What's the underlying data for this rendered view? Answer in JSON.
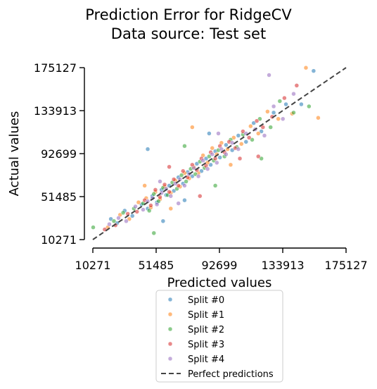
{
  "chart_data": {
    "type": "scatter",
    "title": "Prediction Error for RidgeCV",
    "subtitle": "Data source: Test set",
    "xlabel": "Predicted values",
    "ylabel": "Actual values",
    "xlim": [
      10271,
      175127
    ],
    "ylim": [
      10271,
      175127
    ],
    "xticks": [
      "10271",
      "51485",
      "92699",
      "133913",
      "175127"
    ],
    "yticks": [
      "10271",
      "51485",
      "92699",
      "133913",
      "175127"
    ],
    "grid": false,
    "legend_position": "below",
    "series": [
      {
        "name": "Split #0",
        "color": "#1f77b4",
        "points": [
          [
            22000,
            30000
          ],
          [
            26000,
            26000
          ],
          [
            31000,
            38000
          ],
          [
            36000,
            33000
          ],
          [
            42000,
            44000
          ],
          [
            46000,
            40000
          ],
          [
            49000,
            52000
          ],
          [
            52000,
            46000
          ],
          [
            55000,
            58000
          ],
          [
            58000,
            53000
          ],
          [
            60000,
            62000
          ],
          [
            63000,
            57000
          ],
          [
            66000,
            70000
          ],
          [
            69000,
            64000
          ],
          [
            72000,
            75000
          ],
          [
            75000,
            71000
          ],
          [
            78000,
            83000
          ],
          [
            81000,
            76000
          ],
          [
            84000,
            88000
          ],
          [
            87000,
            82000
          ],
          [
            90000,
            95000
          ],
          [
            93000,
            89000
          ],
          [
            97000,
            101000
          ],
          [
            101000,
            96000
          ],
          [
            105000,
            110000
          ],
          [
            110000,
            104000
          ],
          [
            115000,
            122000
          ],
          [
            120000,
            114000
          ],
          [
            128000,
            132000
          ],
          [
            136000,
            140000
          ],
          [
            146000,
            140000
          ],
          [
            154000,
            172000
          ],
          [
            46000,
            97000
          ],
          [
            56000,
            28000
          ],
          [
            70000,
            48000
          ],
          [
            86000,
            112000
          ]
        ]
      },
      {
        "name": "Split #1",
        "color": "#ff7f0e",
        "points": [
          [
            20000,
            22000
          ],
          [
            28000,
            34000
          ],
          [
            34000,
            30000
          ],
          [
            40000,
            46000
          ],
          [
            45000,
            50000
          ],
          [
            48000,
            41000
          ],
          [
            51000,
            56000
          ],
          [
            54000,
            49000
          ],
          [
            57000,
            61000
          ],
          [
            61000,
            55000
          ],
          [
            64000,
            67000
          ],
          [
            67000,
            61000
          ],
          [
            70000,
            74000
          ],
          [
            73000,
            69000
          ],
          [
            76000,
            80000
          ],
          [
            79000,
            74000
          ],
          [
            82000,
            91000
          ],
          [
            85000,
            84000
          ],
          [
            88000,
            98000
          ],
          [
            91000,
            92000
          ],
          [
            94000,
            103000
          ],
          [
            98000,
            97000
          ],
          [
            102000,
            108000
          ],
          [
            107000,
            102000
          ],
          [
            113000,
            119000
          ],
          [
            118000,
            112000
          ],
          [
            124000,
            133000
          ],
          [
            131000,
            126000
          ],
          [
            140000,
            131000
          ],
          [
            149000,
            175000
          ],
          [
            157000,
            127000
          ],
          [
            75000,
            118000
          ],
          [
            61000,
            40000
          ],
          [
            100000,
            82000
          ],
          [
            44000,
            62000
          ]
        ]
      },
      {
        "name": "Split #2",
        "color": "#2ca02c",
        "points": [
          [
            10500,
            22000
          ],
          [
            24000,
            28000
          ],
          [
            30000,
            36000
          ],
          [
            37000,
            40000
          ],
          [
            43000,
            45000
          ],
          [
            47000,
            38000
          ],
          [
            50000,
            54000
          ],
          [
            53000,
            47000
          ],
          [
            56000,
            60000
          ],
          [
            59000,
            53000
          ],
          [
            62000,
            65000
          ],
          [
            65000,
            59000
          ],
          [
            68000,
            72000
          ],
          [
            71000,
            66000
          ],
          [
            74000,
            78000
          ],
          [
            77000,
            73000
          ],
          [
            80000,
            85000
          ],
          [
            83000,
            79000
          ],
          [
            86000,
            90000
          ],
          [
            89000,
            86000
          ],
          [
            92000,
            96000
          ],
          [
            96000,
            90000
          ],
          [
            100000,
            106000
          ],
          [
            104000,
            99000
          ],
          [
            108000,
            111000
          ],
          [
            114000,
            106000
          ],
          [
            119000,
            126000
          ],
          [
            126000,
            118000
          ],
          [
            132000,
            143000
          ],
          [
            141000,
            132000
          ],
          [
            151000,
            138000
          ],
          [
            50000,
            16500
          ],
          [
            90000,
            62000
          ],
          [
            70000,
            100000
          ],
          [
            120000,
            88000
          ]
        ]
      },
      {
        "name": "Split #3",
        "color": "#d62728",
        "points": [
          [
            18000,
            20000
          ],
          [
            25000,
            24000
          ],
          [
            33000,
            35000
          ],
          [
            39000,
            37000
          ],
          [
            44000,
            48000
          ],
          [
            48000,
            43000
          ],
          [
            51000,
            58000
          ],
          [
            54000,
            51000
          ],
          [
            57000,
            63000
          ],
          [
            60000,
            56000
          ],
          [
            63000,
            68000
          ],
          [
            66000,
            62000
          ],
          [
            69000,
            76000
          ],
          [
            72000,
            70000
          ],
          [
            75000,
            82000
          ],
          [
            78000,
            77000
          ],
          [
            81000,
            88000
          ],
          [
            84000,
            81000
          ],
          [
            87000,
            94000
          ],
          [
            90000,
            88000
          ],
          [
            93000,
            100000
          ],
          [
            96000,
            94000
          ],
          [
            99000,
            104000
          ],
          [
            103000,
            98000
          ],
          [
            108000,
            114000
          ],
          [
            112000,
            108000
          ],
          [
            117000,
            124000
          ],
          [
            121000,
            118000
          ],
          [
            127000,
            128000
          ],
          [
            135000,
            146000
          ],
          [
            143000,
            158000
          ],
          [
            80000,
            52000
          ],
          [
            106000,
            88000
          ],
          [
            60000,
            80000
          ],
          [
            118000,
            90000
          ]
        ]
      },
      {
        "name": "Split #4",
        "color": "#9467bd",
        "points": [
          [
            21000,
            25000
          ],
          [
            27000,
            31000
          ],
          [
            32000,
            28000
          ],
          [
            38000,
            42000
          ],
          [
            43000,
            39000
          ],
          [
            46000,
            47000
          ],
          [
            49000,
            50000
          ],
          [
            52000,
            44000
          ],
          [
            55000,
            55000
          ],
          [
            58000,
            59000
          ],
          [
            61000,
            52000
          ],
          [
            64000,
            64000
          ],
          [
            67000,
            68000
          ],
          [
            70000,
            62000
          ],
          [
            73000,
            73000
          ],
          [
            76000,
            79000
          ],
          [
            79000,
            71000
          ],
          [
            82000,
            86000
          ],
          [
            85000,
            78000
          ],
          [
            88000,
            92000
          ],
          [
            91000,
            84000
          ],
          [
            94000,
            97000
          ],
          [
            97000,
            92000
          ],
          [
            101000,
            103000
          ],
          [
            105000,
            97000
          ],
          [
            110000,
            112000
          ],
          [
            116000,
            116000
          ],
          [
            122000,
            110000
          ],
          [
            128000,
            138000
          ],
          [
            134000,
            126000
          ],
          [
            141000,
            150000
          ],
          [
            125000,
            168000
          ],
          [
            66000,
            45000
          ],
          [
            92000,
            112000
          ],
          [
            54000,
            66000
          ]
        ]
      }
    ],
    "reference_line": {
      "name": "Perfect predictions",
      "color": "#444444",
      "style": "dashed",
      "from": [
        10271,
        10271
      ],
      "to": [
        175127,
        175127
      ]
    }
  }
}
